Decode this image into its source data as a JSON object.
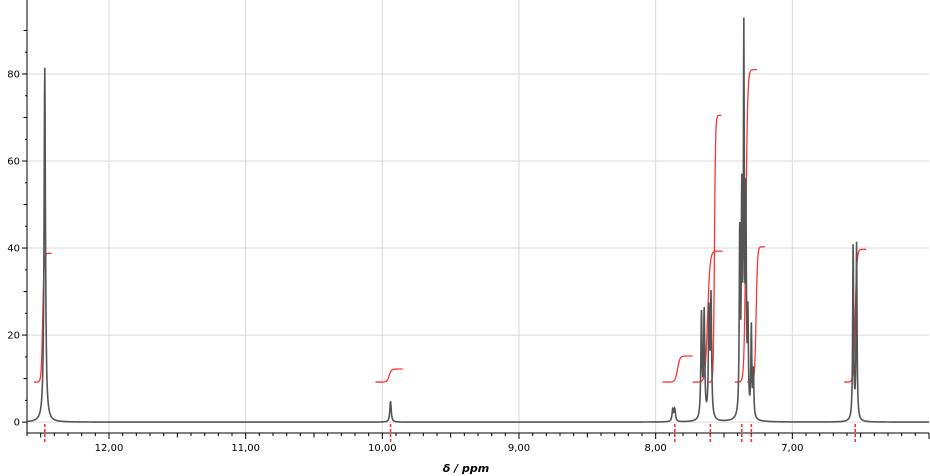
{
  "chart_data": {
    "type": "line",
    "title": "",
    "xlabel": "δ / ppm",
    "ylabel": "",
    "x_reversed": true,
    "xlim": [
      12.6,
      6.0
    ],
    "ylim": [
      -2.5,
      97
    ],
    "grid": true,
    "x_ticks": [
      12.0,
      11.0,
      10.0,
      9.0,
      8.0,
      7.0
    ],
    "x_tick_labels": [
      "12,00",
      "11,00",
      "10,00",
      "9,00",
      "8,00",
      "7,00"
    ],
    "y_ticks": [
      0,
      20,
      40,
      60,
      80
    ],
    "y_tick_labels": [
      "0",
      "20",
      "40",
      "60",
      "80"
    ],
    "colors": {
      "spectrum": "#555555",
      "integral": "#ff3333",
      "grid": "#d9d9d9",
      "axis": "#000000"
    },
    "series": [
      {
        "peaks": [
          {
            "ppm": 12.47,
            "height": 81.5,
            "width": 0.006
          },
          {
            "ppm": 9.94,
            "height": 4.8,
            "width": 0.006
          },
          {
            "ppm": 7.875,
            "height": 2.8,
            "width": 0.006
          },
          {
            "ppm": 7.86,
            "height": 2.8,
            "width": 0.006
          },
          {
            "ppm": 7.665,
            "height": 24.0,
            "width": 0.005
          },
          {
            "ppm": 7.645,
            "height": 24.5,
            "width": 0.005
          },
          {
            "ppm": 7.61,
            "height": 24.0,
            "width": 0.005
          },
          {
            "ppm": 7.595,
            "height": 27.5,
            "width": 0.005
          },
          {
            "ppm": 7.385,
            "height": 42.0,
            "width": 0.004
          },
          {
            "ppm": 7.37,
            "height": 48.0,
            "width": 0.004
          },
          {
            "ppm": 7.355,
            "height": 85.5,
            "width": 0.004
          },
          {
            "ppm": 7.34,
            "height": 47.5,
            "width": 0.004
          },
          {
            "ppm": 7.325,
            "height": 22.0,
            "width": 0.004
          },
          {
            "ppm": 7.3,
            "height": 20.5,
            "width": 0.004
          },
          {
            "ppm": 7.285,
            "height": 10.5,
            "width": 0.004
          },
          {
            "ppm": 6.555,
            "height": 40.5,
            "width": 0.004
          },
          {
            "ppm": 6.53,
            "height": 40.5,
            "width": 0.004
          }
        ]
      }
    ],
    "integrals": [
      {
        "from": 12.55,
        "to": 12.42,
        "low": 9.2,
        "high": 38.8
      },
      {
        "from": 10.05,
        "to": 9.85,
        "low": 9.2,
        "high": 12.2
      },
      {
        "from": 7.95,
        "to": 7.73,
        "low": 9.2,
        "high": 15.2
      },
      {
        "from": 7.73,
        "to": 7.51,
        "low": 9.2,
        "high": 39.3
      },
      {
        "from": 7.62,
        "to": 7.52,
        "low": 9.2,
        "high": 70.5
      },
      {
        "from": 7.42,
        "to": 7.26,
        "low": 9.2,
        "high": 81.0
      },
      {
        "from": 7.33,
        "to": 7.2,
        "low": 9.2,
        "high": 40.3
      },
      {
        "from": 6.62,
        "to": 6.46,
        "low": 9.2,
        "high": 39.7
      }
    ],
    "integral_markers": [
      12.47,
      9.94,
      7.86,
      7.6,
      7.37,
      7.3,
      6.54
    ]
  }
}
